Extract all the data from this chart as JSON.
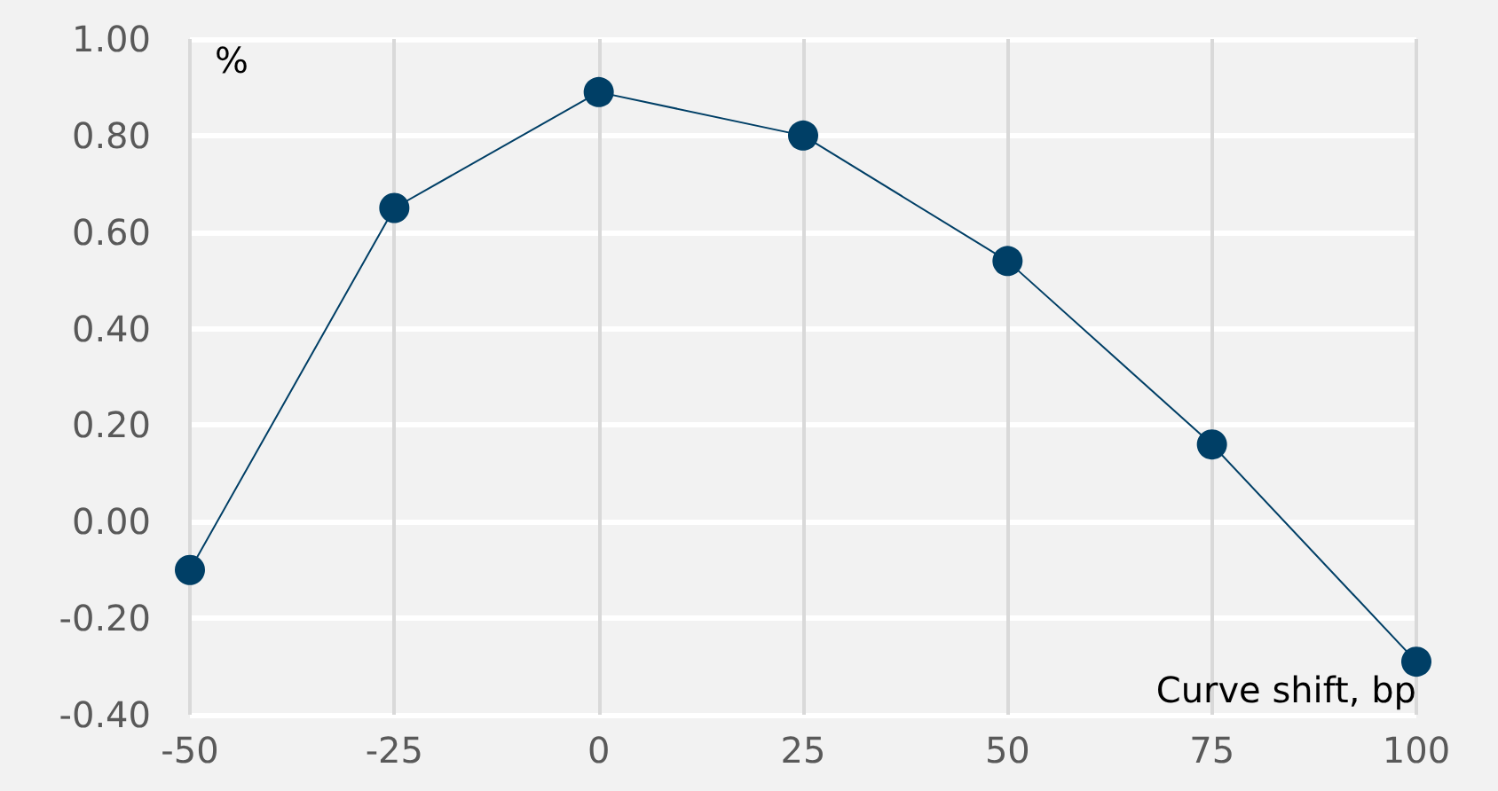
{
  "chart_data": {
    "type": "line",
    "ylabel": "%",
    "xlabel": "Curve shift, bp",
    "x": [
      -50,
      -25,
      0,
      25,
      50,
      75,
      100
    ],
    "series": [
      {
        "color": "#003f66",
        "values": [
          -0.1,
          0.65,
          0.89,
          0.8,
          0.54,
          0.16,
          -0.29
        ]
      }
    ],
    "xlim": [
      -50,
      100
    ],
    "xticks": [
      -50,
      -25,
      0,
      25,
      50,
      75,
      100
    ],
    "ylim": [
      -0.4,
      1.0
    ],
    "yticks": [
      {
        "value": -0.4,
        "label": "-0.40"
      },
      {
        "value": -0.2,
        "label": "-0.20"
      },
      {
        "value": 0,
        "label": "0.00"
      },
      {
        "value": 0.2,
        "label": "0.20"
      },
      {
        "value": 0.4,
        "label": "0.40"
      },
      {
        "value": 0.6,
        "label": "0.60"
      },
      {
        "value": 0.8,
        "label": "0.80"
      },
      {
        "value": 1.0,
        "label": "1.00"
      }
    ],
    "grid": true,
    "marker": "circle",
    "line_style": "solid"
  }
}
